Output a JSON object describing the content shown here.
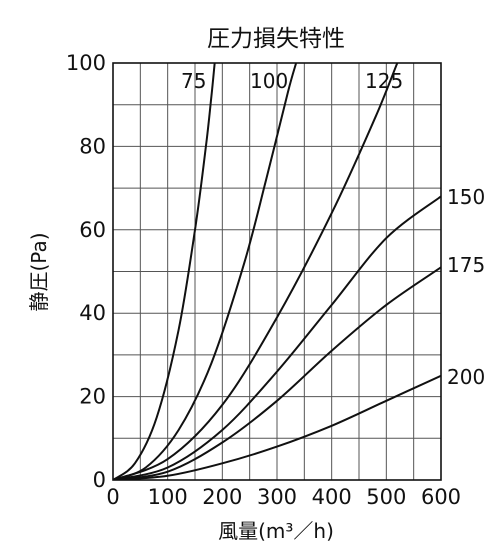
{
  "chart_data": {
    "type": "line",
    "title": "圧力損失特性",
    "xlabel": "風量(m³／h)",
    "ylabel": "静圧(Pa)",
    "xlim": [
      0,
      600
    ],
    "ylim": [
      0,
      100
    ],
    "xticks": [
      "0",
      "100",
      "200",
      "300",
      "400",
      "500",
      "600"
    ],
    "yticks": [
      "0",
      "20",
      "40",
      "60",
      "80",
      "100"
    ],
    "grid": true,
    "legend": "none",
    "series": [
      {
        "name": "75",
        "points": [
          [
            0,
            0
          ],
          [
            40,
            4
          ],
          [
            80,
            15
          ],
          [
            120,
            36
          ],
          [
            150,
            60
          ],
          [
            170,
            80
          ],
          [
            180,
            92
          ],
          [
            186,
            100
          ]
        ]
      },
      {
        "name": "100",
        "points": [
          [
            0,
            0
          ],
          [
            60,
            3
          ],
          [
            120,
            12
          ],
          [
            180,
            28
          ],
          [
            240,
            52
          ],
          [
            280,
            72
          ],
          [
            320,
            93
          ],
          [
            335,
            100
          ]
        ]
      },
      {
        "name": "125",
        "points": [
          [
            0,
            0
          ],
          [
            100,
            5
          ],
          [
            200,
            18
          ],
          [
            300,
            39
          ],
          [
            400,
            64
          ],
          [
            480,
            87
          ],
          [
            520,
            100
          ]
        ]
      },
      {
        "name": "150",
        "points": [
          [
            0,
            0
          ],
          [
            100,
            3
          ],
          [
            200,
            12
          ],
          [
            300,
            26
          ],
          [
            400,
            42
          ],
          [
            500,
            58
          ],
          [
            600,
            68
          ]
        ]
      },
      {
        "name": "175",
        "points": [
          [
            0,
            0
          ],
          [
            100,
            2
          ],
          [
            200,
            9
          ],
          [
            300,
            19
          ],
          [
            400,
            31
          ],
          [
            500,
            42
          ],
          [
            600,
            51
          ]
        ]
      },
      {
        "name": "200",
        "points": [
          [
            0,
            0
          ],
          [
            100,
            1
          ],
          [
            200,
            4
          ],
          [
            300,
            8
          ],
          [
            400,
            13
          ],
          [
            500,
            19
          ],
          [
            600,
            25
          ]
        ]
      }
    ]
  }
}
